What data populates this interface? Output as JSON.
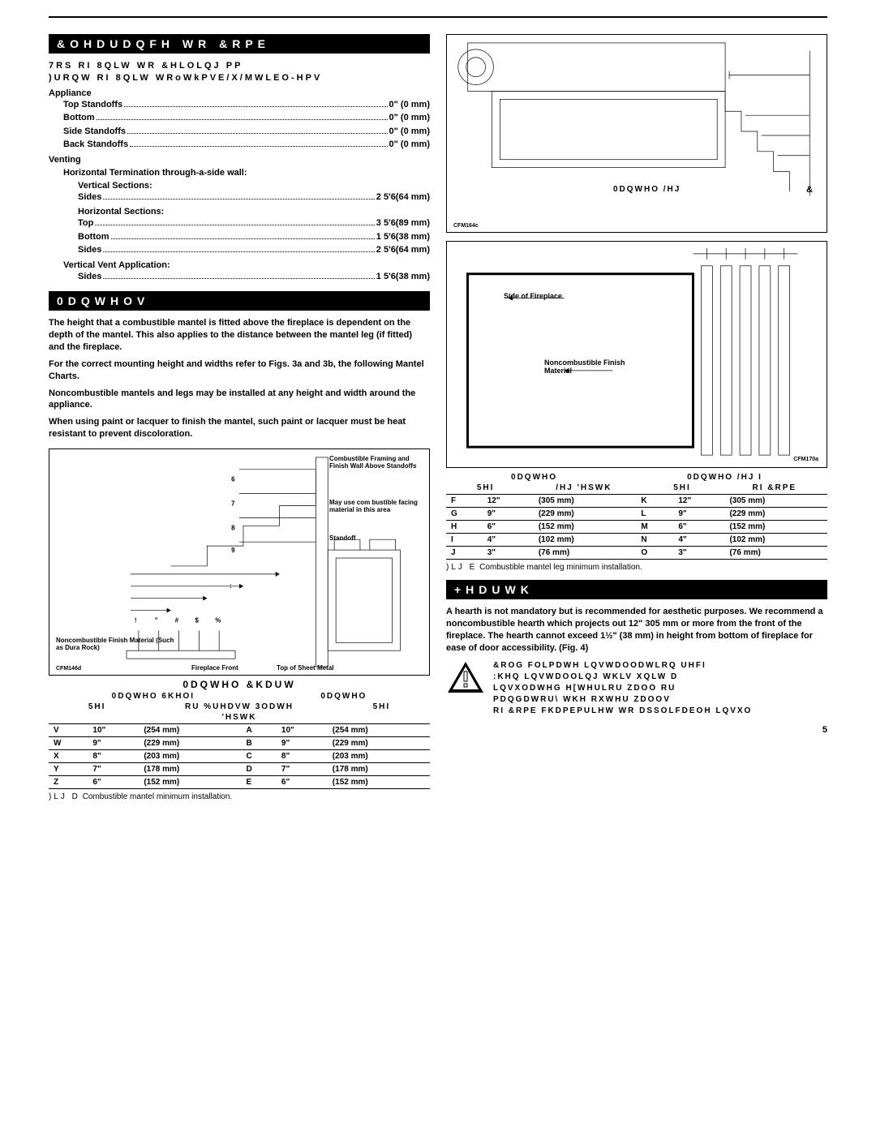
{
  "headers": {
    "clearance": "&OHDUDQFH WR &RPE",
    "mantels": "0DQWHOV",
    "hearth": "+HDUWK"
  },
  "clearance_top": {
    "line1": "7RS RI 8QLW WR &HLOLQJ      PP",
    "line2": ")URQW RI 8QLW WRoWkPVE/X/MWLEO-HPV"
  },
  "appliance_label": "Appliance",
  "appliance": [
    {
      "label": "Top Standoffs",
      "val": "0\" (0 mm)"
    },
    {
      "label": "Bottom",
      "val": "0\" (0 mm)"
    },
    {
      "label": "Side Standoffs",
      "val": "0\" (0 mm)"
    },
    {
      "label": "Back Standoffs",
      "val": "0\" (0 mm)"
    }
  ],
  "venting_label": "Venting",
  "horiz_term_label": "Horizontal Termination through-a-side wall:",
  "vert_sections_label": "Vertical Sections:",
  "vert_sections": [
    {
      "label": "Sides",
      "val": "2 5'6(64 mm)"
    }
  ],
  "horiz_sections_label": "Horizontal Sections:",
  "horiz_sections": [
    {
      "label": "Top",
      "val": "3 5'6(89 mm)"
    },
    {
      "label": "Bottom",
      "val": "1 5'6(38 mm)"
    },
    {
      "label": "Sides",
      "val": "2 5'6(64 mm)"
    }
  ],
  "vert_vent_label": "Vertical Vent Application:",
  "vert_vent": [
    {
      "label": "Sides",
      "val": "1 5'6(38 mm)"
    }
  ],
  "mantels_paras": [
    "The height that a combustible mantel is fitted above the fireplace is dependent on the depth of the mantel. This also applies to the distance between the mantel leg (if fitted) and the fireplace.",
    "For the correct mounting height and widths refer to Figs. 3a and 3b, the following Mantel Charts.",
    "Noncombustible mantels and legs may be installed at any height and width around the appliance.",
    "When using paint or lacquer to finish the mantel, such paint or lacquer must be heat resistant to prevent discoloration."
  ],
  "fig3a_labels": {
    "combustible": "Combustible Framing and Finish Wall Above Standoffs",
    "mayuse": "May use com bustible facing material in this area",
    "standoff": "Standoff",
    "noncomb": "Noncombustible Finish Material (Such as Dura Rock)",
    "front": "Fireplace Front",
    "topsheet": "Top of Sheet Metal",
    "code": "CFM146d"
  },
  "fig3a_letters": {
    "v": "6",
    "w": "7",
    "x": "8",
    "y": "9",
    "a": "!",
    "b": "\"",
    "c": "#",
    "d": "$",
    "e": "%",
    "z": ":"
  },
  "chart3a": {
    "title": "0DQWHO &KDUW",
    "sub_left": "0DQWHO 6KHOI",
    "sub_right": "0DQWHO",
    "ref_left": "5HI",
    "mid": "'HSWK",
    "breast": "RU %UHDVW 3ODWH",
    "ref_right": "5HI",
    "rows": [
      {
        "r": "V",
        "d": "10\"",
        "dm": "(254 mm)",
        "r2": "A",
        "d2": "10\"",
        "dm2": "(254 mm)"
      },
      {
        "r": "W",
        "d": "9\"",
        "dm": "(229 mm)",
        "r2": "B",
        "d2": "9\"",
        "dm2": "(229 mm)"
      },
      {
        "r": "X",
        "d": "8\"",
        "dm": "(203 mm)",
        "r2": "C",
        "d2": "8\"",
        "dm2": "(203 mm)"
      },
      {
        "r": "Y",
        "d": "7\"",
        "dm": "(178 mm)",
        "r2": "D",
        "d2": "7\"",
        "dm2": "(178 mm)"
      },
      {
        "r": "Z",
        "d": "6\"",
        "dm": "(152 mm)",
        "r2": "E",
        "d2": "6\"",
        "dm2": "(152 mm)"
      }
    ],
    "caption_prefix": ")LJ  D",
    "caption": "Combustible mantel minimum installation."
  },
  "fig3b_labels": {
    "mantel_leg": "0DQWHO /HJ",
    "side": "Side of Fireplace",
    "noncomb": "Noncombustible Finish Material",
    "code_top": "CFM164c",
    "code_bot": "CFM170a"
  },
  "chart3b": {
    "sub_left": "0DQWHO",
    "sub_right": "0DQWHO /HJ I",
    "ref_left": "5HI",
    "leg_depth": "/HJ 'HSWK",
    "ref_right": "5HI",
    "of_comb": "RI &RPE",
    "rows": [
      {
        "r": "F",
        "d": "12\"",
        "dm": "(305 mm)",
        "r2": "K",
        "d2": "12\"",
        "dm2": "(305 mm)"
      },
      {
        "r": "G",
        "d": "9\"",
        "dm": "(229 mm)",
        "r2": "L",
        "d2": "9\"",
        "dm2": "(229 mm)"
      },
      {
        "r": "H",
        "d": "6\"",
        "dm": "(152 mm)",
        "r2": "M",
        "d2": "6\"",
        "dm2": "(152 mm)"
      },
      {
        "r": "I",
        "d": "4\"",
        "dm": "(102 mm)",
        "r2": "N",
        "d2": "4\"",
        "dm2": "(102 mm)"
      },
      {
        "r": "J",
        "d": "3\"",
        "dm": "(76 mm)",
        "r2": "O",
        "d2": "3\"",
        "dm2": "(76 mm)"
      }
    ],
    "caption_prefix": ")LJ  E",
    "caption": "Combustible mantel leg minimum installation."
  },
  "hearth_para": "A hearth is not mandatory but is recommended for aesthetic purposes. We recommend a noncombustible hearth which projects out 12\" 305 mm or more from the front of the fireplace. The hearth cannot exceed 1½\" (38 mm) in height from bottom of fireplace for ease of door accessibility. (Fig. 4)",
  "warning_lines": [
    "&ROG FOLPDWH LQVWDOODWLRQ UHFI",
    ":KHQ LQVWDOOLQJ WKLV XQLW D",
    "LQVXODWHG H[WHULRU ZDOO RU",
    "PDQGDWRU\\ WKH RXWHU ZDOOV",
    "RI &RPE FKDPEPULHW WR DSSOLFDEOH LQVXO"
  ],
  "page_number": "5"
}
